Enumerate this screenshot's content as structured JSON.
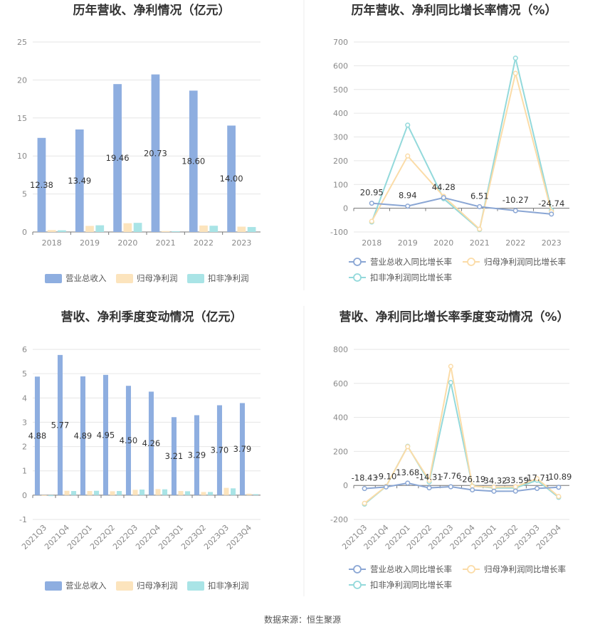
{
  "source": "数据来源：恒生聚源",
  "colors": {
    "revenue": "#8eaee0",
    "parent_profit": "#fce4bd",
    "non_recurring_profit": "#a9e4e6",
    "line_revenue": "#8aa6d4",
    "line_parent": "#fbdca8",
    "line_nonrec": "#93d9db",
    "grid": "#e6e6e6",
    "axis": "#777777"
  },
  "chart_data": [
    {
      "id": "annual-bar",
      "type": "bar",
      "title": "历年营收、净利情况（亿元）",
      "categories": [
        "2018",
        "2019",
        "2020",
        "2021",
        "2022",
        "2023"
      ],
      "ylim": [
        0,
        25
      ],
      "yticks": [
        "0",
        "5",
        "10",
        "15",
        "20",
        "25"
      ],
      "grid": true,
      "legend_position": "bottom",
      "series": [
        {
          "name": "营业总收入",
          "values": [
            12.38,
            13.49,
            19.46,
            20.73,
            18.6,
            14.0
          ],
          "labels": [
            "12.38",
            "13.49",
            "19.46",
            "20.73",
            "18.60",
            "14.00"
          ]
        },
        {
          "name": "归母净利润",
          "values": [
            0.25,
            0.8,
            1.15,
            0.12,
            0.85,
            0.7
          ]
        },
        {
          "name": "扣非净利润",
          "values": [
            0.22,
            0.88,
            1.2,
            0.1,
            0.82,
            0.65
          ]
        }
      ]
    },
    {
      "id": "annual-line",
      "type": "line",
      "title": "历年营收、净利同比增长率情况（%）",
      "categories": [
        "2018",
        "2019",
        "2020",
        "2021",
        "2022",
        "2023"
      ],
      "ylim": [
        -100,
        700
      ],
      "yticks": [
        "-100",
        "0",
        "100",
        "200",
        "300",
        "400",
        "500",
        "600",
        "700"
      ],
      "grid": true,
      "legend_position": "bottom",
      "series": [
        {
          "name": "营业总收入同比增长率",
          "values": [
            20.95,
            8.94,
            44.28,
            6.51,
            -10.27,
            -24.74
          ],
          "labels": [
            "20.95",
            "8.94",
            "44.28",
            "6.51",
            "-10.27",
            "-24.74"
          ]
        },
        {
          "name": "归母净利润同比增长率",
          "values": [
            -55,
            220,
            50,
            -88,
            568,
            -15
          ]
        },
        {
          "name": "扣非净利润同比增长率",
          "values": [
            -58,
            350,
            40,
            -90,
            632,
            -8
          ]
        }
      ]
    },
    {
      "id": "quarter-bar",
      "type": "bar",
      "title": "营收、净利季度变动情况（亿元）",
      "categories": [
        "2021Q3",
        "2021Q4",
        "2022Q1",
        "2022Q2",
        "2022Q3",
        "2022Q4",
        "2023Q1",
        "2023Q2",
        "2023Q3",
        "2023Q4"
      ],
      "ylim": [
        -1,
        6
      ],
      "yticks": [
        "-1",
        "0",
        "1",
        "2",
        "3",
        "4",
        "5",
        "6"
      ],
      "grid": true,
      "legend_position": "bottom",
      "series": [
        {
          "name": "营业总收入",
          "values": [
            4.88,
            5.77,
            4.89,
            4.95,
            4.5,
            4.26,
            3.21,
            3.29,
            3.7,
            3.79
          ],
          "labels": [
            "4.88",
            "5.77",
            "4.89",
            "4.95",
            "4.50",
            "4.26",
            "3.21",
            "3.29",
            "3.70",
            "3.79"
          ]
        },
        {
          "name": "归母净利润",
          "values": [
            -0.03,
            0.18,
            0.17,
            0.16,
            0.22,
            0.25,
            0.17,
            0.13,
            0.3,
            0.06
          ]
        },
        {
          "name": "扣非净利润",
          "values": [
            -0.04,
            0.17,
            0.18,
            0.17,
            0.23,
            0.24,
            0.16,
            0.13,
            0.28,
            0.04
          ]
        }
      ]
    },
    {
      "id": "quarter-line",
      "type": "line",
      "title": "营收、净利同比增长率季度变动情况（%）",
      "categories": [
        "2021Q3",
        "2021Q4",
        "2022Q1",
        "2022Q2",
        "2022Q3",
        "2022Q4",
        "2023Q1",
        "2023Q2",
        "2023Q3",
        "2023Q4"
      ],
      "ylim": [
        -200,
        800
      ],
      "yticks": [
        "-200",
        "0",
        "200",
        "400",
        "600",
        "800"
      ],
      "grid": true,
      "legend_position": "bottom",
      "series": [
        {
          "name": "营业总收入同比增长率",
          "values": [
            -18.43,
            -9.1,
            13.68,
            -14.31,
            -7.76,
            -26.19,
            -34.32,
            -33.59,
            -17.71,
            -10.89
          ],
          "labels": [
            "-18.43",
            "-9.10",
            "13.68",
            "-14.31",
            "-7.76",
            "-26.19",
            "-34.32",
            "-33.59",
            "-17.71",
            "-10.89"
          ]
        },
        {
          "name": "归母净利润同比增长率",
          "values": [
            -105,
            -5,
            228,
            30,
            700,
            -5,
            -10,
            -8,
            40,
            -65
          ]
        },
        {
          "name": "扣非净利润同比增长率",
          "values": [
            -110,
            -6,
            230,
            20,
            605,
            -3,
            -15,
            -15,
            30,
            -70
          ]
        }
      ]
    }
  ]
}
